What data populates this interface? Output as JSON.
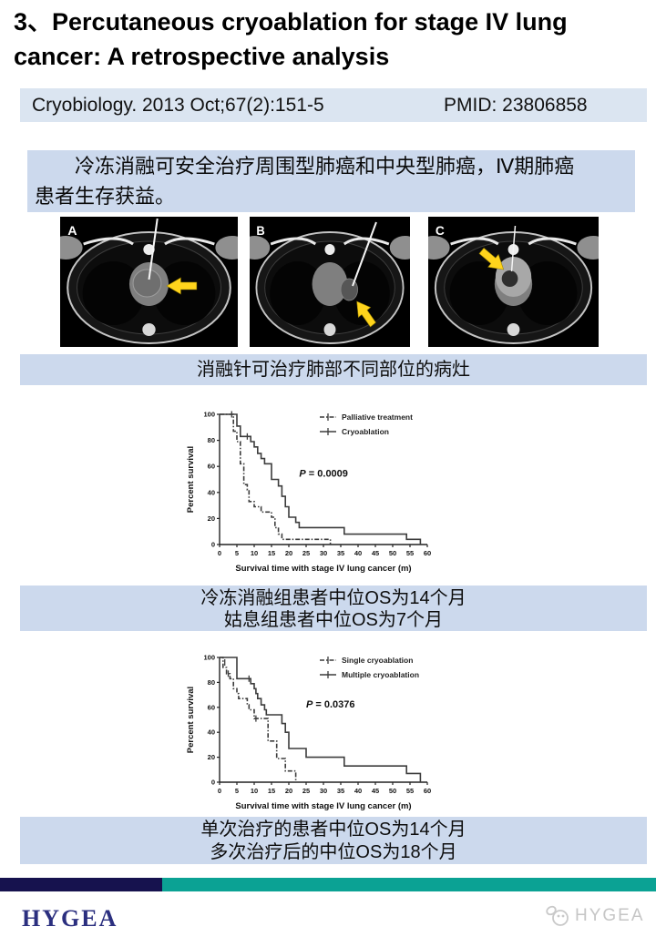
{
  "title": "3、Percutaneous cryoablation for stage IV lung cancer: A retrospective analysis",
  "citation": {
    "journal": "Cryobiology. 2013 Oct;67(2):151-5",
    "pmid": "PMID: 23806858"
  },
  "summary": {
    "line1": "冷冻消融可安全治疗周围型肺癌和中央型肺癌，Ⅳ期肺癌",
    "line2": "患者生存获益。"
  },
  "figure": {
    "panel_labels": [
      "A",
      "B",
      "C"
    ],
    "caption": "消融针可治疗肺部不同部位的病灶"
  },
  "captions": {
    "km1": [
      "冷冻消融组患者中位OS为14个月",
      "姑息组患者中位OS为7个月"
    ],
    "km2": [
      "单次治疗的患者中位OS为14个月",
      "多次治疗后的中位OS为18个月"
    ]
  },
  "footer": {
    "logo_text": "HYGEA",
    "watermark_text": "HYGEA"
  },
  "colors": {
    "band_blue": "#ccd9ed",
    "citation_blue": "#dbe5f1",
    "footer_navy": "#16124e",
    "footer_teal": "#0ba294",
    "arrow_yellow": "#ffd41c",
    "curve_gray": "#3c3c3c"
  },
  "chart_data": [
    {
      "type": "line",
      "subtype": "kaplan-meier-step",
      "title": "",
      "xlabel": "Survival time with stage IV lung cancer (m)",
      "ylabel": "Percent survival",
      "xlim": [
        0,
        60
      ],
      "ylim": [
        0,
        100
      ],
      "x_ticks": [
        0,
        5,
        10,
        15,
        20,
        25,
        30,
        35,
        40,
        45,
        50,
        55,
        60
      ],
      "y_ticks": [
        0,
        20,
        40,
        60,
        80,
        100
      ],
      "grid": false,
      "legend_position": "top-right",
      "annotation": "P = 0.0009",
      "annotation_xy": [
        23,
        52
      ],
      "series": [
        {
          "name": "Palliative treatment",
          "style": "dashdot",
          "points": [
            [
              0,
              100
            ],
            [
              4,
              100
            ],
            [
              4,
              87
            ],
            [
              5,
              87
            ],
            [
              5,
              79
            ],
            [
              6,
              79
            ],
            [
              6,
              62
            ],
            [
              7,
              62
            ],
            [
              7,
              46
            ],
            [
              8,
              46
            ],
            [
              8,
              42
            ],
            [
              8.5,
              42
            ],
            [
              8.5,
              33
            ],
            [
              10,
              33
            ],
            [
              10,
              29
            ],
            [
              12,
              29
            ],
            [
              12,
              25
            ],
            [
              15,
              25
            ],
            [
              15,
              21
            ],
            [
              16,
              21
            ],
            [
              16,
              13
            ],
            [
              17,
              13
            ],
            [
              17,
              8
            ],
            [
              18,
              8
            ],
            [
              18,
              4
            ],
            [
              32,
              4
            ],
            [
              32,
              0
            ]
          ],
          "censors": [
            [
              3.5,
              100
            ]
          ]
        },
        {
          "name": "Cryoablation",
          "style": "solid",
          "points": [
            [
              0,
              100
            ],
            [
              5,
              100
            ],
            [
              5,
              91
            ],
            [
              6,
              91
            ],
            [
              6,
              83
            ],
            [
              9,
              83
            ],
            [
              9,
              79
            ],
            [
              10,
              79
            ],
            [
              10,
              75
            ],
            [
              11,
              75
            ],
            [
              11,
              70
            ],
            [
              12,
              70
            ],
            [
              12,
              66
            ],
            [
              13,
              66
            ],
            [
              13,
              62
            ],
            [
              15,
              62
            ],
            [
              15,
              50
            ],
            [
              17,
              50
            ],
            [
              17,
              45
            ],
            [
              18,
              45
            ],
            [
              18,
              37
            ],
            [
              19,
              37
            ],
            [
              19,
              29
            ],
            [
              20,
              29
            ],
            [
              20,
              21
            ],
            [
              22,
              21
            ],
            [
              22,
              17
            ],
            [
              23,
              17
            ],
            [
              23,
              13
            ],
            [
              36,
              13
            ],
            [
              36,
              8
            ],
            [
              54,
              8
            ],
            [
              54,
              4
            ],
            [
              58,
              4
            ],
            [
              58,
              0
            ]
          ],
          "censors": [
            [
              8,
              83
            ]
          ]
        }
      ]
    },
    {
      "type": "line",
      "subtype": "kaplan-meier-step",
      "title": "",
      "xlabel": "Survival time with stage IV lung cancer (m)",
      "ylabel": "Percent survival",
      "xlim": [
        0,
        60
      ],
      "ylim": [
        0,
        100
      ],
      "x_ticks": [
        0,
        5,
        10,
        15,
        20,
        25,
        30,
        35,
        40,
        45,
        50,
        55,
        60
      ],
      "y_ticks": [
        0,
        20,
        40,
        60,
        80,
        100
      ],
      "grid": false,
      "legend_position": "top-right",
      "annotation": "P = 0.0376",
      "annotation_xy": [
        25,
        60
      ],
      "series": [
        {
          "name": "Single cryoablation",
          "style": "dashdot",
          "points": [
            [
              0,
              100
            ],
            [
              1,
              100
            ],
            [
              1,
              92
            ],
            [
              2,
              92
            ],
            [
              2,
              87
            ],
            [
              3,
              87
            ],
            [
              3,
              83
            ],
            [
              4,
              83
            ],
            [
              4,
              75
            ],
            [
              5,
              75
            ],
            [
              5,
              71
            ],
            [
              5.5,
              71
            ],
            [
              5.5,
              67
            ],
            [
              8,
              67
            ],
            [
              8,
              62
            ],
            [
              8.5,
              62
            ],
            [
              8.5,
              58
            ],
            [
              10,
              58
            ],
            [
              10,
              51
            ],
            [
              14,
              51
            ],
            [
              14,
              33
            ],
            [
              16.5,
              33
            ],
            [
              16.5,
              19
            ],
            [
              19,
              19
            ],
            [
              19,
              9
            ],
            [
              22,
              9
            ],
            [
              22,
              0
            ]
          ],
          "censors": [
            [
              1.5,
              96
            ],
            [
              2.5,
              87
            ],
            [
              10.5,
              51
            ]
          ]
        },
        {
          "name": "Multiple cryoablation",
          "style": "solid",
          "points": [
            [
              0,
              100
            ],
            [
              5,
              100
            ],
            [
              5,
              83
            ],
            [
              9,
              83
            ],
            [
              9,
              79
            ],
            [
              10,
              79
            ],
            [
              10,
              75
            ],
            [
              10.5,
              75
            ],
            [
              10.5,
              71
            ],
            [
              11,
              71
            ],
            [
              11,
              67
            ],
            [
              12,
              67
            ],
            [
              12,
              62
            ],
            [
              13,
              62
            ],
            [
              13,
              58
            ],
            [
              13.5,
              58
            ],
            [
              13.5,
              54
            ],
            [
              18,
              54
            ],
            [
              18,
              47
            ],
            [
              19,
              47
            ],
            [
              19,
              40
            ],
            [
              20,
              40
            ],
            [
              20,
              27
            ],
            [
              25,
              27
            ],
            [
              25,
              20
            ],
            [
              36,
              20
            ],
            [
              36,
              13
            ],
            [
              54,
              13
            ],
            [
              54,
              7
            ],
            [
              58,
              7
            ],
            [
              58,
              0
            ]
          ],
          "censors": [
            [
              8.5,
              83
            ]
          ]
        }
      ]
    }
  ]
}
